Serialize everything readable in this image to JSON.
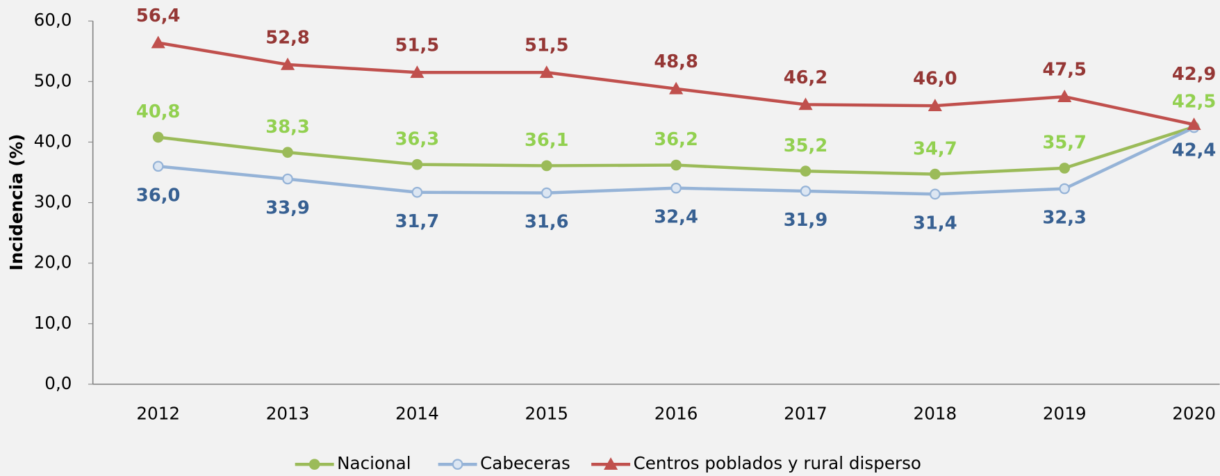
{
  "chart_data": {
    "type": "line",
    "y_label": "Incidencia (%)",
    "categories": [
      "2012",
      "2013",
      "2014",
      "2015",
      "2016",
      "2017",
      "2018",
      "2019",
      "2020"
    ],
    "series": [
      {
        "name": "Nacional",
        "color": "#9bbb59",
        "label_color": "#92d050",
        "marker": "circle",
        "values": [
          40.8,
          38.3,
          36.3,
          36.1,
          36.2,
          35.2,
          34.7,
          35.7,
          42.5
        ],
        "value_labels": [
          "40,8",
          "38,3",
          "36,3",
          "36,1",
          "36,2",
          "35,2",
          "34,7",
          "35,7",
          "42,5"
        ]
      },
      {
        "name": "Cabeceras",
        "color": "#95b3d7",
        "label_color": "#376092",
        "marker": "circle",
        "values": [
          36.0,
          33.9,
          31.7,
          31.6,
          32.4,
          31.9,
          31.4,
          32.3,
          42.4
        ],
        "value_labels": [
          "36,0",
          "33,9",
          "31,7",
          "31,6",
          "32,4",
          "31,9",
          "31,4",
          "32,3",
          "42,4"
        ]
      },
      {
        "name": "Centros poblados y rural disperso",
        "color": "#c0504d",
        "label_color": "#953735",
        "marker": "triangle",
        "values": [
          56.4,
          52.8,
          51.5,
          51.5,
          48.8,
          46.2,
          46.0,
          47.5,
          42.9
        ],
        "value_labels": [
          "56,4",
          "52,8",
          "51,5",
          "51,5",
          "48,8",
          "46,2",
          "46,0",
          "47,5",
          "42,9"
        ]
      }
    ],
    "ylim": [
      0,
      60
    ],
    "yticks": [
      {
        "value": 0,
        "label": "0,0"
      },
      {
        "value": 10,
        "label": "10,0"
      },
      {
        "value": 20,
        "label": "20,0"
      },
      {
        "value": 30,
        "label": "30,0"
      },
      {
        "value": 40,
        "label": "40,0"
      },
      {
        "value": 50,
        "label": "50,0"
      },
      {
        "value": 60,
        "label": "60,0"
      }
    ],
    "legend": "bottom",
    "grid": false
  }
}
